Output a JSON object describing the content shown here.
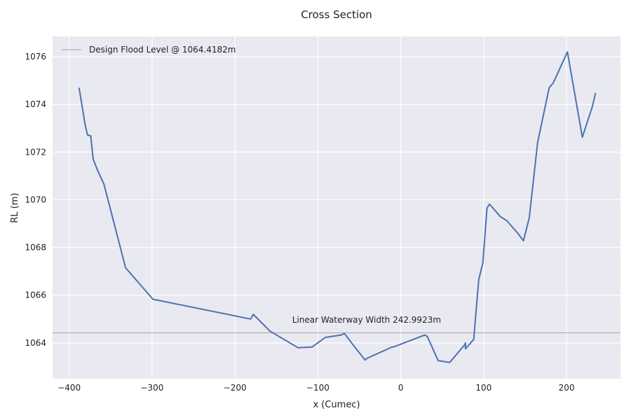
{
  "chart_data": {
    "type": "line",
    "title": "Cross Section",
    "xlabel": "x (Cumec)",
    "ylabel": "RL (m)",
    "xlim": [
      -420,
      265
    ],
    "ylim": [
      1062.5,
      1076.85
    ],
    "xticks": [
      -400,
      -300,
      -200,
      -100,
      0,
      100,
      200
    ],
    "xtick_labels": [
      "−400",
      "−300",
      "−200",
      "−100",
      "0",
      "100",
      "200"
    ],
    "yticks": [
      1064,
      1066,
      1068,
      1070,
      1072,
      1074,
      1076
    ],
    "ytick_labels": [
      "1064",
      "1066",
      "1068",
      "1070",
      "1072",
      "1074",
      "1076"
    ],
    "grid": true,
    "legend_position": "top-left",
    "colors": {
      "background": "#e9e9f1",
      "grid": "#ffffff",
      "series": "#4c72b0",
      "flood_line": "#8c8c8c"
    },
    "series": [
      {
        "x": [
          -388,
          -381,
          -378,
          -374,
          -371,
          -366,
          -358,
          -332,
          -299,
          -181,
          -178,
          -158,
          -124,
          -107,
          -91,
          -72,
          -68,
          -56,
          -43,
          -41,
          -11,
          -8,
          29,
          32,
          45,
          59,
          77,
          78,
          78,
          88,
          94,
          99,
          104,
          107,
          120,
          128,
          141,
          148,
          155,
          165,
          179,
          184,
          201,
          219,
          231,
          235
        ],
        "y": [
          1074.7,
          1073.2,
          1072.72,
          1072.68,
          1071.7,
          1071.25,
          1070.65,
          1067.15,
          1065.83,
          1065.0,
          1065.2,
          1064.5,
          1063.8,
          1063.83,
          1064.23,
          1064.33,
          1064.4,
          1063.85,
          1063.28,
          1063.35,
          1063.82,
          1063.84,
          1064.33,
          1064.27,
          1063.26,
          1063.18,
          1063.92,
          1064.0,
          1063.75,
          1064.15,
          1066.65,
          1067.35,
          1069.65,
          1069.82,
          1069.3,
          1069.12,
          1068.6,
          1068.28,
          1069.25,
          1072.4,
          1074.7,
          1074.9,
          1076.2,
          1072.62,
          1073.9,
          1074.48
        ]
      }
    ],
    "hlines": [
      {
        "y": 1064.4182,
        "name": "Design Flood Level @ 1064.4182m"
      }
    ],
    "annotations": [
      {
        "text": "Linear Waterway Width 242.9923m",
        "x": -131,
        "y": 1064.85
      }
    ]
  }
}
